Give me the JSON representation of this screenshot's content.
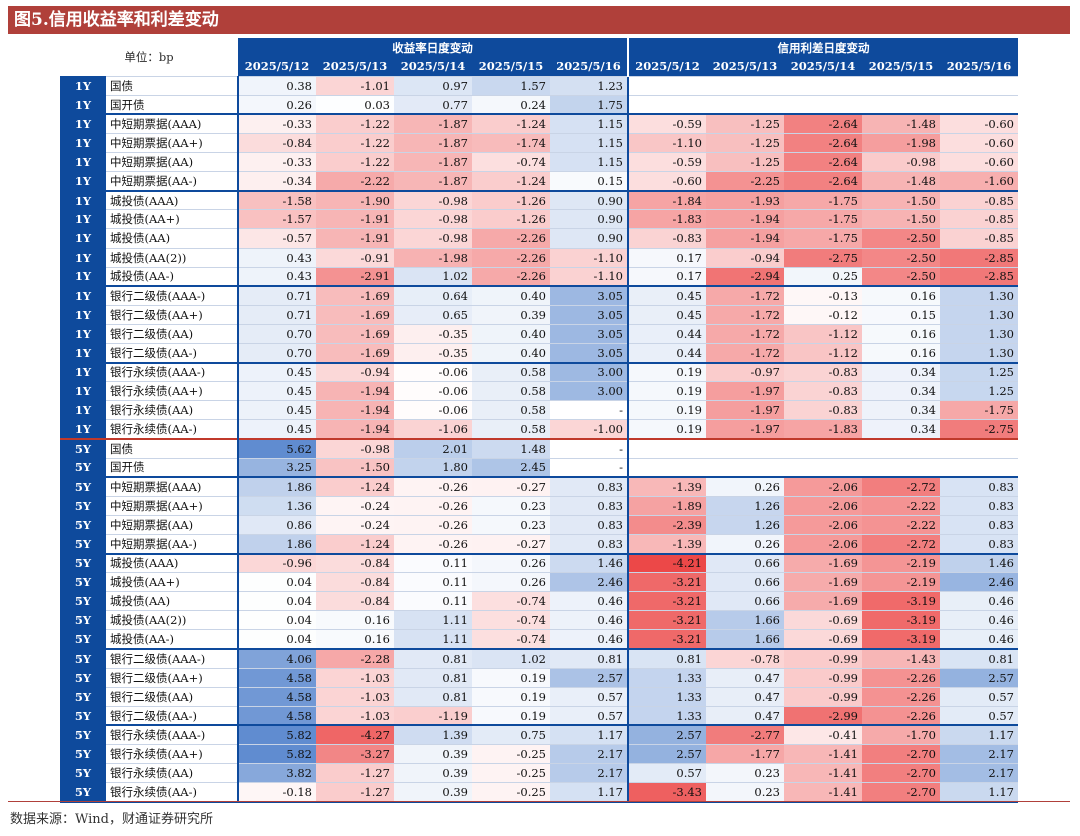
{
  "title": "图5.信用收益率和利差变动",
  "unit_label": "单位：bp",
  "group_headers": {
    "yield": "收益率日度变动",
    "spread": "信用利差日度变动"
  },
  "dates": [
    "2025/5/12",
    "2025/5/13",
    "2025/5/14",
    "2025/5/15",
    "2025/5/16"
  ],
  "source": "数据来源：Wind，财通证券研究所",
  "rows": [
    {
      "tenor": "1Y",
      "name": "国债",
      "yield": [
        "0.38",
        "-1.01",
        "0.97",
        "1.57",
        "1.23"
      ],
      "spread": null
    },
    {
      "tenor": "1Y",
      "name": "国开债",
      "yield": [
        "0.26",
        "0.03",
        "0.77",
        "0.24",
        "1.75"
      ],
      "spread": null
    },
    {
      "tenor": "1Y",
      "name": "中短期票据(AAA)",
      "yield": [
        "-0.33",
        "-1.22",
        "-1.87",
        "-1.24",
        "1.15"
      ],
      "spread": [
        "-0.59",
        "-1.25",
        "-2.64",
        "-1.48",
        "-0.60"
      ]
    },
    {
      "tenor": "1Y",
      "name": "中短期票据(AA+)",
      "yield": [
        "-0.84",
        "-1.22",
        "-1.87",
        "-1.74",
        "1.15"
      ],
      "spread": [
        "-1.10",
        "-1.25",
        "-2.64",
        "-1.98",
        "-0.60"
      ]
    },
    {
      "tenor": "1Y",
      "name": "中短期票据(AA)",
      "yield": [
        "-0.33",
        "-1.22",
        "-1.87",
        "-0.74",
        "1.15"
      ],
      "spread": [
        "-0.59",
        "-1.25",
        "-2.64",
        "-0.98",
        "-0.60"
      ]
    },
    {
      "tenor": "1Y",
      "name": "中短期票据(AA-)",
      "yield": [
        "-0.34",
        "-2.22",
        "-1.87",
        "-1.24",
        "0.15"
      ],
      "spread": [
        "-0.60",
        "-2.25",
        "-2.64",
        "-1.48",
        "-1.60"
      ]
    },
    {
      "tenor": "1Y",
      "name": "城投债(AAA)",
      "yield": [
        "-1.58",
        "-1.90",
        "-0.98",
        "-1.26",
        "0.90"
      ],
      "spread": [
        "-1.84",
        "-1.93",
        "-1.75",
        "-1.50",
        "-0.85"
      ]
    },
    {
      "tenor": "1Y",
      "name": "城投债(AA+)",
      "yield": [
        "-1.57",
        "-1.91",
        "-0.98",
        "-1.26",
        "0.90"
      ],
      "spread": [
        "-1.83",
        "-1.94",
        "-1.75",
        "-1.50",
        "-0.85"
      ]
    },
    {
      "tenor": "1Y",
      "name": "城投债(AA)",
      "yield": [
        "-0.57",
        "-1.91",
        "-0.98",
        "-2.26",
        "0.90"
      ],
      "spread": [
        "-0.83",
        "-1.94",
        "-1.75",
        "-2.50",
        "-0.85"
      ]
    },
    {
      "tenor": "1Y",
      "name": "城投债(AA(2))",
      "yield": [
        "0.43",
        "-0.91",
        "-1.98",
        "-2.26",
        "-1.10"
      ],
      "spread": [
        "0.17",
        "-0.94",
        "-2.75",
        "-2.50",
        "-2.85"
      ]
    },
    {
      "tenor": "1Y",
      "name": "城投债(AA-)",
      "yield": [
        "0.43",
        "-2.91",
        "1.02",
        "-2.26",
        "-1.10"
      ],
      "spread": [
        "0.17",
        "-2.94",
        "0.25",
        "-2.50",
        "-2.85"
      ]
    },
    {
      "tenor": "1Y",
      "name": "银行二级债(AAA-)",
      "yield": [
        "0.71",
        "-1.69",
        "0.64",
        "0.40",
        "3.05"
      ],
      "spread": [
        "0.45",
        "-1.72",
        "-0.13",
        "0.16",
        "1.30"
      ]
    },
    {
      "tenor": "1Y",
      "name": "银行二级债(AA+)",
      "yield": [
        "0.71",
        "-1.69",
        "0.65",
        "0.39",
        "3.05"
      ],
      "spread": [
        "0.45",
        "-1.72",
        "-0.12",
        "0.15",
        "1.30"
      ]
    },
    {
      "tenor": "1Y",
      "name": "银行二级债(AA)",
      "yield": [
        "0.70",
        "-1.69",
        "-0.35",
        "0.40",
        "3.05"
      ],
      "spread": [
        "0.44",
        "-1.72",
        "-1.12",
        "0.16",
        "1.30"
      ]
    },
    {
      "tenor": "1Y",
      "name": "银行二级债(AA-)",
      "yield": [
        "0.70",
        "-1.69",
        "-0.35",
        "0.40",
        "3.05"
      ],
      "spread": [
        "0.44",
        "-1.72",
        "-1.12",
        "0.16",
        "1.30"
      ]
    },
    {
      "tenor": "1Y",
      "name": "银行永续债(AAA-)",
      "yield": [
        "0.45",
        "-0.94",
        "-0.06",
        "0.58",
        "3.00"
      ],
      "spread": [
        "0.19",
        "-0.97",
        "-0.83",
        "0.34",
        "1.25"
      ]
    },
    {
      "tenor": "1Y",
      "name": "银行永续债(AA+)",
      "yield": [
        "0.45",
        "-1.94",
        "-0.06",
        "0.58",
        "3.00"
      ],
      "spread": [
        "0.19",
        "-1.97",
        "-0.83",
        "0.34",
        "1.25"
      ]
    },
    {
      "tenor": "1Y",
      "name": "银行永续债(AA)",
      "yield": [
        "0.45",
        "-1.94",
        "-0.06",
        "0.58",
        "-"
      ],
      "spread": [
        "0.19",
        "-1.97",
        "-0.83",
        "0.34",
        "-1.75"
      ]
    },
    {
      "tenor": "1Y",
      "name": "银行永续债(AA-)",
      "yield": [
        "0.45",
        "-1.94",
        "-1.06",
        "0.58",
        "-1.00"
      ],
      "spread": [
        "0.19",
        "-1.97",
        "-1.83",
        "0.34",
        "-2.75"
      ]
    },
    {
      "tenor": "5Y",
      "name": "国债",
      "yield": [
        "5.62",
        "-0.98",
        "2.01",
        "1.48",
        "-"
      ],
      "spread": null
    },
    {
      "tenor": "5Y",
      "name": "国开债",
      "yield": [
        "3.25",
        "-1.50",
        "1.80",
        "2.45",
        "-"
      ],
      "spread": null
    },
    {
      "tenor": "5Y",
      "name": "中短期票据(AAA)",
      "yield": [
        "1.86",
        "-1.24",
        "-0.26",
        "-0.27",
        "0.83"
      ],
      "spread": [
        "-1.39",
        "0.26",
        "-2.06",
        "-2.72",
        "0.83"
      ]
    },
    {
      "tenor": "5Y",
      "name": "中短期票据(AA+)",
      "yield": [
        "1.36",
        "-0.24",
        "-0.26",
        "0.23",
        "0.83"
      ],
      "spread": [
        "-1.89",
        "1.26",
        "-2.06",
        "-2.22",
        "0.83"
      ]
    },
    {
      "tenor": "5Y",
      "name": "中短期票据(AA)",
      "yield": [
        "0.86",
        "-0.24",
        "-0.26",
        "0.23",
        "0.83"
      ],
      "spread": [
        "-2.39",
        "1.26",
        "-2.06",
        "-2.22",
        "0.83"
      ]
    },
    {
      "tenor": "5Y",
      "name": "中短期票据(AA-)",
      "yield": [
        "1.86",
        "-1.24",
        "-0.26",
        "-0.27",
        "0.83"
      ],
      "spread": [
        "-1.39",
        "0.26",
        "-2.06",
        "-2.72",
        "0.83"
      ]
    },
    {
      "tenor": "5Y",
      "name": "城投债(AAA)",
      "yield": [
        "-0.96",
        "-0.84",
        "0.11",
        "0.26",
        "1.46"
      ],
      "spread": [
        "-4.21",
        "0.66",
        "-1.69",
        "-2.19",
        "1.46"
      ]
    },
    {
      "tenor": "5Y",
      "name": "城投债(AA+)",
      "yield": [
        "0.04",
        "-0.84",
        "0.11",
        "0.26",
        "2.46"
      ],
      "spread": [
        "-3.21",
        "0.66",
        "-1.69",
        "-2.19",
        "2.46"
      ]
    },
    {
      "tenor": "5Y",
      "name": "城投债(AA)",
      "yield": [
        "0.04",
        "-0.84",
        "0.11",
        "-0.74",
        "0.46"
      ],
      "spread": [
        "-3.21",
        "0.66",
        "-1.69",
        "-3.19",
        "0.46"
      ]
    },
    {
      "tenor": "5Y",
      "name": "城投债(AA(2))",
      "yield": [
        "0.04",
        "0.16",
        "1.11",
        "-0.74",
        "0.46"
      ],
      "spread": [
        "-3.21",
        "1.66",
        "-0.69",
        "-3.19",
        "0.46"
      ]
    },
    {
      "tenor": "5Y",
      "name": "城投债(AA-)",
      "yield": [
        "0.04",
        "0.16",
        "1.11",
        "-0.74",
        "0.46"
      ],
      "spread": [
        "-3.21",
        "1.66",
        "-0.69",
        "-3.19",
        "0.46"
      ]
    },
    {
      "tenor": "5Y",
      "name": "银行二级债(AAA-)",
      "yield": [
        "4.06",
        "-2.28",
        "0.81",
        "1.02",
        "0.81"
      ],
      "spread": [
        "0.81",
        "-0.78",
        "-0.99",
        "-1.43",
        "0.81"
      ]
    },
    {
      "tenor": "5Y",
      "name": "银行二级债(AA+)",
      "yield": [
        "4.58",
        "-1.03",
        "0.81",
        "0.19",
        "2.57"
      ],
      "spread": [
        "1.33",
        "0.47",
        "-0.99",
        "-2.26",
        "2.57"
      ]
    },
    {
      "tenor": "5Y",
      "name": "银行二级债(AA)",
      "yield": [
        "4.58",
        "-1.03",
        "0.81",
        "0.19",
        "0.57"
      ],
      "spread": [
        "1.33",
        "0.47",
        "-0.99",
        "-2.26",
        "0.57"
      ]
    },
    {
      "tenor": "5Y",
      "name": "银行二级债(AA-)",
      "yield": [
        "4.58",
        "-1.03",
        "-1.19",
        "0.19",
        "0.57"
      ],
      "spread": [
        "1.33",
        "0.47",
        "-2.99",
        "-2.26",
        "0.57"
      ]
    },
    {
      "tenor": "5Y",
      "name": "银行永续债(AAA-)",
      "yield": [
        "5.82",
        "-4.27",
        "1.39",
        "0.75",
        "1.17"
      ],
      "spread": [
        "2.57",
        "-2.77",
        "-0.41",
        "-1.70",
        "1.17"
      ]
    },
    {
      "tenor": "5Y",
      "name": "银行永续债(AA+)",
      "yield": [
        "5.82",
        "-3.27",
        "0.39",
        "-0.25",
        "2.17"
      ],
      "spread": [
        "2.57",
        "-1.77",
        "-1.41",
        "-2.70",
        "2.17"
      ]
    },
    {
      "tenor": "5Y",
      "name": "银行永续债(AA)",
      "yield": [
        "3.82",
        "-1.27",
        "0.39",
        "-0.25",
        "2.17"
      ],
      "spread": [
        "0.57",
        "0.23",
        "-1.41",
        "-2.70",
        "2.17"
      ]
    },
    {
      "tenor": "5Y",
      "name": "银行永续债(AA-)",
      "yield": [
        "-0.18",
        "-1.27",
        "0.39",
        "-0.25",
        "1.17"
      ],
      "spread": [
        "-3.43",
        "0.23",
        "-1.41",
        "-2.70",
        "1.17"
      ]
    }
  ]
}
